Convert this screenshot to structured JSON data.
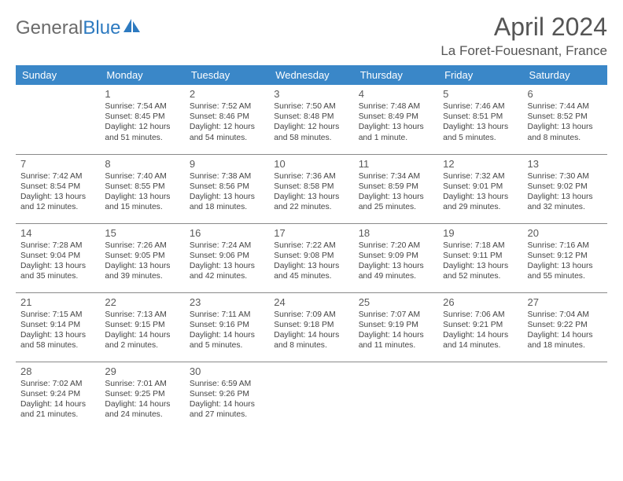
{
  "logo": {
    "word1": "General",
    "word2": "Blue"
  },
  "title": "April 2024",
  "location": "La Foret-Fouesnant, France",
  "weekdays": [
    "Sunday",
    "Monday",
    "Tuesday",
    "Wednesday",
    "Thursday",
    "Friday",
    "Saturday"
  ],
  "colors": {
    "header_bg": "#3a87c8",
    "header_text": "#ffffff",
    "daynum": "#5a5a5a",
    "details": "#444444",
    "rule": "#8a8a8a",
    "logo_gray": "#6b6b6b",
    "logo_blue": "#2d7ac0"
  },
  "weeks": [
    [
      null,
      {
        "n": "1",
        "sunrise": "7:54 AM",
        "sunset": "8:45 PM",
        "daylight": "12 hours and 51 minutes."
      },
      {
        "n": "2",
        "sunrise": "7:52 AM",
        "sunset": "8:46 PM",
        "daylight": "12 hours and 54 minutes."
      },
      {
        "n": "3",
        "sunrise": "7:50 AM",
        "sunset": "8:48 PM",
        "daylight": "12 hours and 58 minutes."
      },
      {
        "n": "4",
        "sunrise": "7:48 AM",
        "sunset": "8:49 PM",
        "daylight": "13 hours and 1 minute."
      },
      {
        "n": "5",
        "sunrise": "7:46 AM",
        "sunset": "8:51 PM",
        "daylight": "13 hours and 5 minutes."
      },
      {
        "n": "6",
        "sunrise": "7:44 AM",
        "sunset": "8:52 PM",
        "daylight": "13 hours and 8 minutes."
      }
    ],
    [
      {
        "n": "7",
        "sunrise": "7:42 AM",
        "sunset": "8:54 PM",
        "daylight": "13 hours and 12 minutes."
      },
      {
        "n": "8",
        "sunrise": "7:40 AM",
        "sunset": "8:55 PM",
        "daylight": "13 hours and 15 minutes."
      },
      {
        "n": "9",
        "sunrise": "7:38 AM",
        "sunset": "8:56 PM",
        "daylight": "13 hours and 18 minutes."
      },
      {
        "n": "10",
        "sunrise": "7:36 AM",
        "sunset": "8:58 PM",
        "daylight": "13 hours and 22 minutes."
      },
      {
        "n": "11",
        "sunrise": "7:34 AM",
        "sunset": "8:59 PM",
        "daylight": "13 hours and 25 minutes."
      },
      {
        "n": "12",
        "sunrise": "7:32 AM",
        "sunset": "9:01 PM",
        "daylight": "13 hours and 29 minutes."
      },
      {
        "n": "13",
        "sunrise": "7:30 AM",
        "sunset": "9:02 PM",
        "daylight": "13 hours and 32 minutes."
      }
    ],
    [
      {
        "n": "14",
        "sunrise": "7:28 AM",
        "sunset": "9:04 PM",
        "daylight": "13 hours and 35 minutes."
      },
      {
        "n": "15",
        "sunrise": "7:26 AM",
        "sunset": "9:05 PM",
        "daylight": "13 hours and 39 minutes."
      },
      {
        "n": "16",
        "sunrise": "7:24 AM",
        "sunset": "9:06 PM",
        "daylight": "13 hours and 42 minutes."
      },
      {
        "n": "17",
        "sunrise": "7:22 AM",
        "sunset": "9:08 PM",
        "daylight": "13 hours and 45 minutes."
      },
      {
        "n": "18",
        "sunrise": "7:20 AM",
        "sunset": "9:09 PM",
        "daylight": "13 hours and 49 minutes."
      },
      {
        "n": "19",
        "sunrise": "7:18 AM",
        "sunset": "9:11 PM",
        "daylight": "13 hours and 52 minutes."
      },
      {
        "n": "20",
        "sunrise": "7:16 AM",
        "sunset": "9:12 PM",
        "daylight": "13 hours and 55 minutes."
      }
    ],
    [
      {
        "n": "21",
        "sunrise": "7:15 AM",
        "sunset": "9:14 PM",
        "daylight": "13 hours and 58 minutes."
      },
      {
        "n": "22",
        "sunrise": "7:13 AM",
        "sunset": "9:15 PM",
        "daylight": "14 hours and 2 minutes."
      },
      {
        "n": "23",
        "sunrise": "7:11 AM",
        "sunset": "9:16 PM",
        "daylight": "14 hours and 5 minutes."
      },
      {
        "n": "24",
        "sunrise": "7:09 AM",
        "sunset": "9:18 PM",
        "daylight": "14 hours and 8 minutes."
      },
      {
        "n": "25",
        "sunrise": "7:07 AM",
        "sunset": "9:19 PM",
        "daylight": "14 hours and 11 minutes."
      },
      {
        "n": "26",
        "sunrise": "7:06 AM",
        "sunset": "9:21 PM",
        "daylight": "14 hours and 14 minutes."
      },
      {
        "n": "27",
        "sunrise": "7:04 AM",
        "sunset": "9:22 PM",
        "daylight": "14 hours and 18 minutes."
      }
    ],
    [
      {
        "n": "28",
        "sunrise": "7:02 AM",
        "sunset": "9:24 PM",
        "daylight": "14 hours and 21 minutes."
      },
      {
        "n": "29",
        "sunrise": "7:01 AM",
        "sunset": "9:25 PM",
        "daylight": "14 hours and 24 minutes."
      },
      {
        "n": "30",
        "sunrise": "6:59 AM",
        "sunset": "9:26 PM",
        "daylight": "14 hours and 27 minutes."
      },
      null,
      null,
      null,
      null
    ]
  ],
  "labels": {
    "sunrise": "Sunrise:",
    "sunset": "Sunset:",
    "daylight": "Daylight:"
  }
}
